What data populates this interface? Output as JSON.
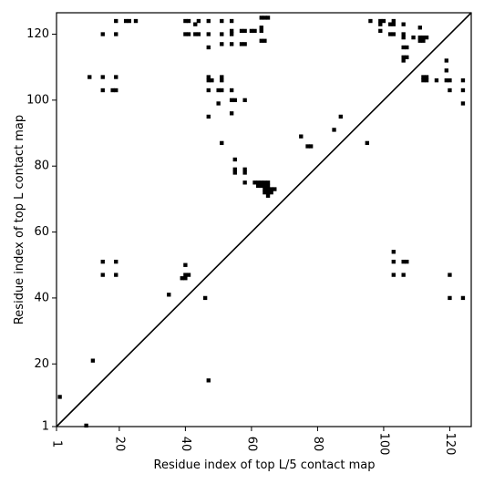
{
  "chart_data": {
    "type": "scatter",
    "xlabel": "Residue index of top L/5 contact map",
    "ylabel": "Residue index of top L contact map",
    "xlim": [
      1,
      126.5
    ],
    "ylim": [
      1,
      126.5
    ],
    "x_ticks": [
      1,
      20,
      40,
      60,
      80,
      100,
      120
    ],
    "y_ticks": [
      1,
      20,
      40,
      60,
      80,
      100,
      120
    ],
    "diagonal": true,
    "grid": false,
    "marker_color": "#000000",
    "points": [
      [
        2,
        10
      ],
      [
        10,
        1.3
      ],
      [
        12,
        21
      ],
      [
        11,
        107
      ],
      [
        15,
        107
      ],
      [
        19,
        107
      ],
      [
        15,
        103
      ],
      [
        19,
        103
      ],
      [
        18,
        103
      ],
      [
        15,
        120
      ],
      [
        19,
        120
      ],
      [
        19,
        124
      ],
      [
        22,
        124
      ],
      [
        23,
        124
      ],
      [
        25,
        124
      ],
      [
        15,
        51
      ],
      [
        19,
        51
      ],
      [
        15,
        47
      ],
      [
        19,
        47
      ],
      [
        35,
        41
      ],
      [
        39,
        46
      ],
      [
        40,
        46
      ],
      [
        40,
        47
      ],
      [
        41,
        47
      ],
      [
        40,
        50
      ],
      [
        46,
        40
      ],
      [
        47,
        15
      ],
      [
        40,
        124
      ],
      [
        41,
        124
      ],
      [
        44,
        124
      ],
      [
        47,
        124
      ],
      [
        51,
        124
      ],
      [
        54,
        124
      ],
      [
        40,
        120
      ],
      [
        41,
        120
      ],
      [
        43,
        120
      ],
      [
        44,
        120
      ],
      [
        47,
        120
      ],
      [
        51,
        120
      ],
      [
        54,
        120
      ],
      [
        54,
        121
      ],
      [
        43,
        123
      ],
      [
        47,
        116
      ],
      [
        51,
        117
      ],
      [
        54,
        117
      ],
      [
        57,
        117
      ],
      [
        58,
        117
      ],
      [
        57,
        121
      ],
      [
        58,
        121
      ],
      [
        60,
        121
      ],
      [
        61,
        121
      ],
      [
        63,
        121
      ],
      [
        63,
        122
      ],
      [
        63,
        118
      ],
      [
        64,
        118
      ],
      [
        63,
        125
      ],
      [
        64,
        125
      ],
      [
        65,
        125
      ],
      [
        47,
        107
      ],
      [
        47,
        106
      ],
      [
        48,
        106
      ],
      [
        51,
        107
      ],
      [
        51,
        106
      ],
      [
        47,
        103
      ],
      [
        50,
        103
      ],
      [
        51,
        103
      ],
      [
        54,
        103
      ],
      [
        54,
        100
      ],
      [
        55,
        100
      ],
      [
        58,
        100
      ],
      [
        50,
        99
      ],
      [
        54,
        96
      ],
      [
        47,
        95
      ],
      [
        51,
        87
      ],
      [
        55,
        82
      ],
      [
        55,
        79
      ],
      [
        55,
        78
      ],
      [
        58,
        79
      ],
      [
        58,
        78
      ],
      [
        58,
        75
      ],
      [
        61,
        75
      ],
      [
        62,
        75
      ],
      [
        63,
        75
      ],
      [
        64,
        75
      ],
      [
        65,
        75
      ],
      [
        62,
        74
      ],
      [
        63,
        74
      ],
      [
        64,
        74
      ],
      [
        65,
        74
      ],
      [
        64,
        73
      ],
      [
        65,
        73
      ],
      [
        66,
        73
      ],
      [
        67,
        73
      ],
      [
        64,
        72
      ],
      [
        65,
        72
      ],
      [
        66,
        72
      ],
      [
        65,
        71
      ],
      [
        75,
        89
      ],
      [
        77,
        86
      ],
      [
        78,
        86
      ],
      [
        85,
        91
      ],
      [
        87,
        95
      ],
      [
        95,
        87
      ],
      [
        96,
        124
      ],
      [
        99,
        124
      ],
      [
        100,
        124
      ],
      [
        103,
        124
      ],
      [
        99,
        123
      ],
      [
        102,
        123
      ],
      [
        103,
        123
      ],
      [
        106,
        123
      ],
      [
        99,
        121
      ],
      [
        102,
        120
      ],
      [
        103,
        120
      ],
      [
        106,
        120
      ],
      [
        106,
        119
      ],
      [
        109,
        119
      ],
      [
        111,
        122
      ],
      [
        111,
        119
      ],
      [
        112,
        119
      ],
      [
        113,
        119
      ],
      [
        111,
        118
      ],
      [
        112,
        118
      ],
      [
        106,
        116
      ],
      [
        107,
        116
      ],
      [
        106,
        113
      ],
      [
        107,
        113
      ],
      [
        106,
        112
      ],
      [
        112,
        107
      ],
      [
        113,
        107
      ],
      [
        112,
        106
      ],
      [
        113,
        106
      ],
      [
        116,
        106
      ],
      [
        119,
        106
      ],
      [
        120,
        106
      ],
      [
        124,
        106
      ],
      [
        119,
        112
      ],
      [
        119,
        109
      ],
      [
        120,
        103
      ],
      [
        124,
        103
      ],
      [
        124,
        99
      ],
      [
        103,
        54
      ],
      [
        103,
        51
      ],
      [
        106,
        51
      ],
      [
        107,
        51
      ],
      [
        103,
        47
      ],
      [
        106,
        47
      ],
      [
        120,
        47
      ],
      [
        120,
        40
      ],
      [
        124,
        40
      ]
    ]
  }
}
